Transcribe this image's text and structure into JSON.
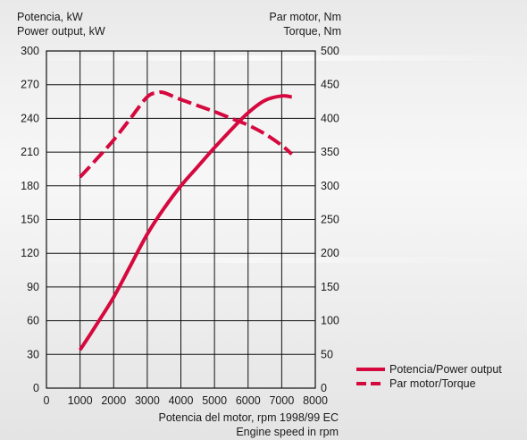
{
  "chart_data": {
    "type": "line",
    "left_axis_label_1": "Potencia, kW",
    "left_axis_label_2": "Power output, kW",
    "right_axis_label_1": "Par motor, Nm",
    "right_axis_label_2": "Torque, Nm",
    "xlabel_1": "Potencia del motor, rpm 1998/99 EC",
    "xlabel_2": "Engine speed in rpm",
    "xlim": [
      0,
      8000
    ],
    "x_ticks": [
      0,
      1000,
      2000,
      3000,
      4000,
      5000,
      6000,
      7000,
      8000
    ],
    "ylim_left": [
      0,
      300
    ],
    "y_ticks_left": [
      0,
      30,
      60,
      90,
      120,
      150,
      180,
      210,
      240,
      270,
      300
    ],
    "ylim_right": [
      0,
      500
    ],
    "y_ticks_right": [
      0,
      50,
      100,
      150,
      200,
      250,
      300,
      350,
      400,
      450,
      500
    ],
    "grid": true,
    "legend_position": "bottom-right",
    "colors": {
      "series": "#d6093f",
      "grid": "#111111"
    },
    "series": [
      {
        "name": "Potencia/Power output",
        "axis": "left",
        "style": "solid",
        "x": [
          1000,
          1500,
          2000,
          2500,
          3000,
          3500,
          4000,
          4500,
          5000,
          5500,
          6000,
          6500,
          7000,
          7300
        ],
        "y": [
          34,
          57,
          81,
          109,
          137,
          160,
          180,
          197,
          214,
          230,
          245,
          256,
          260,
          259
        ]
      },
      {
        "name": "Par motor/Torque",
        "axis": "right",
        "style": "dashed",
        "x": [
          1000,
          1500,
          2000,
          2500,
          3000,
          3300,
          3500,
          4000,
          4500,
          5000,
          5500,
          6000,
          6500,
          7000,
          7300
        ],
        "y": [
          313,
          340,
          368,
          400,
          432,
          438,
          438,
          428,
          419,
          410,
          400,
          390,
          377,
          360,
          347
        ]
      }
    ]
  }
}
